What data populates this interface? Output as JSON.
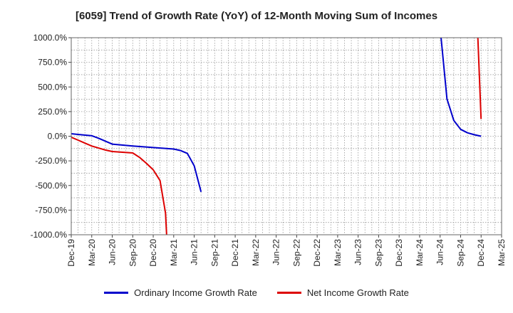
{
  "chart_data": {
    "type": "line",
    "title": "[6059]  Trend of Growth Rate (YoY) of 12-Month Moving Sum of Incomes",
    "ylim": [
      -1000,
      1000
    ],
    "y_ticks": [
      "1000.0%",
      "750.0%",
      "500.0%",
      "250.0%",
      "0.0%",
      "-250.0%",
      "-500.0%",
      "-750.0%",
      "-1000.0%"
    ],
    "y_tick_values": [
      1000,
      750,
      500,
      250,
      0,
      -250,
      -500,
      -750,
      -1000
    ],
    "x_ticks": [
      "Dec-19",
      "Mar-20",
      "Jun-20",
      "Sep-20",
      "Dec-20",
      "Mar-21",
      "Jun-21",
      "Sep-21",
      "Dec-21",
      "Mar-22",
      "Jun-22",
      "Sep-22",
      "Dec-22",
      "Mar-23",
      "Jun-23",
      "Sep-23",
      "Dec-23",
      "Mar-24",
      "Jun-24",
      "Sep-24",
      "Dec-24",
      "Mar-25"
    ],
    "x_range_months": [
      0,
      63
    ],
    "grid": true,
    "legend_position": "bottom",
    "series": [
      {
        "name": "Ordinary Income Growth Rate",
        "color": "#0000cc",
        "points": [
          {
            "m": 0,
            "v": 25
          },
          {
            "m": 1,
            "v": 18
          },
          {
            "m": 3,
            "v": 5
          },
          {
            "m": 4,
            "v": -20
          },
          {
            "m": 5,
            "v": -50
          },
          {
            "m": 6,
            "v": -80
          },
          {
            "m": 9,
            "v": -100
          },
          {
            "m": 12,
            "v": -115
          },
          {
            "m": 15,
            "v": -130
          },
          {
            "m": 16,
            "v": -145
          },
          {
            "m": 17,
            "v": -175
          },
          {
            "m": 18,
            "v": -300
          },
          {
            "m": 19,
            "v": -565
          }
        ]
      },
      {
        "name": "Ordinary Income Growth Rate",
        "color": "#0000cc",
        "points": [
          {
            "m": 54,
            "v": 1100
          },
          {
            "m": 55,
            "v": 380
          },
          {
            "m": 56,
            "v": 160
          },
          {
            "m": 57,
            "v": 70
          },
          {
            "m": 58,
            "v": 35
          },
          {
            "m": 59,
            "v": 15
          },
          {
            "m": 60,
            "v": 0
          }
        ]
      },
      {
        "name": "Net Income Growth Rate",
        "color": "#dd0000",
        "points": [
          {
            "m": 0,
            "v": -10
          },
          {
            "m": 1,
            "v": -40
          },
          {
            "m": 2,
            "v": -70
          },
          {
            "m": 3,
            "v": -100
          },
          {
            "m": 4,
            "v": -120
          },
          {
            "m": 5,
            "v": -140
          },
          {
            "m": 6,
            "v": -155
          },
          {
            "m": 9,
            "v": -170
          },
          {
            "m": 10,
            "v": -215
          },
          {
            "m": 11,
            "v": -275
          },
          {
            "m": 12,
            "v": -340
          },
          {
            "m": 13,
            "v": -450
          },
          {
            "m": 13.8,
            "v": -780
          },
          {
            "m": 14,
            "v": -1050
          }
        ]
      },
      {
        "name": "Net Income Growth Rate",
        "color": "#dd0000",
        "points": [
          {
            "m": 59.5,
            "v": 1050
          },
          {
            "m": 60,
            "v": 175
          }
        ]
      }
    ],
    "legend": [
      {
        "name": "Ordinary Income Growth Rate",
        "color": "#0000cc"
      },
      {
        "name": "Net Income Growth Rate",
        "color": "#dd0000"
      }
    ]
  }
}
